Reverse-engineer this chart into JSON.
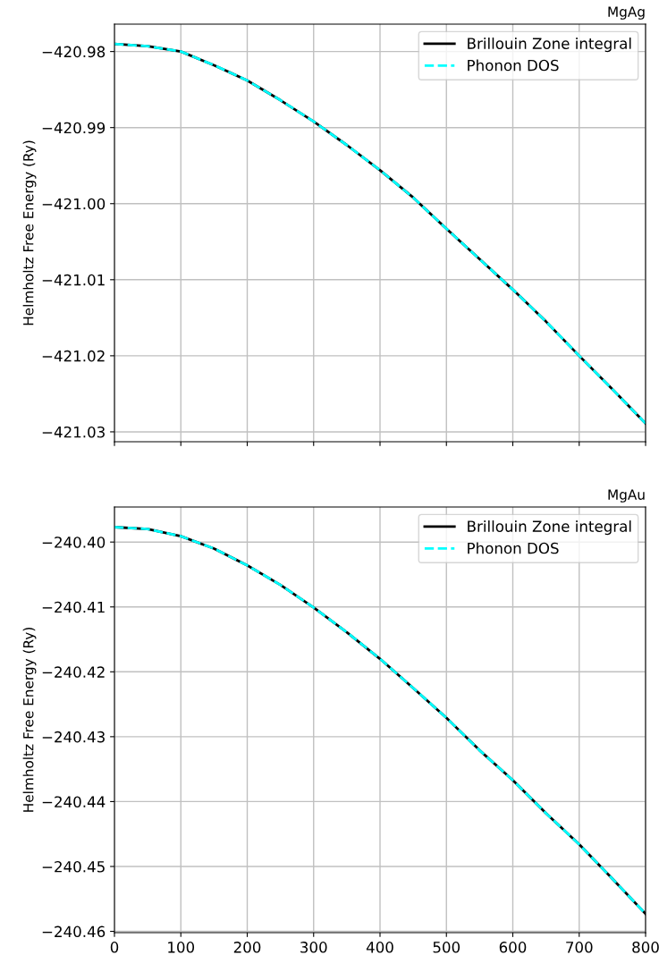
{
  "chart_data": [
    {
      "type": "line",
      "title": "MgAg",
      "ylabel": "Helmholtz Free Energy (Ry)",
      "x": [
        0,
        50,
        100,
        150,
        200,
        250,
        300,
        350,
        400,
        450,
        500,
        550,
        600,
        650,
        700,
        750,
        800
      ],
      "series": [
        {
          "name": "Brillouin Zone integral",
          "color": "#000000",
          "line_style": "solid",
          "values": [
            -420.979,
            -420.9793,
            -420.98,
            -420.9818,
            -420.9838,
            -420.9864,
            -420.9892,
            -420.9923,
            -420.9956,
            -420.9992,
            -421.0033,
            -421.0073,
            -421.0113,
            -421.0155,
            -421.02,
            -421.0244,
            -421.0289
          ]
        },
        {
          "name": "Phonon DOS",
          "color": "#00ffff",
          "line_style": "dashed",
          "values": [
            -420.979,
            -420.9793,
            -420.98,
            -420.9818,
            -420.9838,
            -420.9864,
            -420.9892,
            -420.9923,
            -420.9956,
            -420.9992,
            -421.0033,
            -421.0073,
            -421.0113,
            -421.0155,
            -421.02,
            -421.0244,
            -421.0289
          ]
        }
      ],
      "xlim": [
        0,
        800
      ],
      "xticks": [
        0,
        100,
        200,
        300,
        400,
        500,
        600,
        700,
        800
      ],
      "ylim": [
        -421.0313,
        -420.9764
      ],
      "yticks": [
        {
          "value": -420.98,
          "label": "−420.98"
        },
        {
          "value": -420.99,
          "label": "−420.99"
        },
        {
          "value": -421.0,
          "label": "−421.00"
        },
        {
          "value": -421.01,
          "label": "−421.01"
        },
        {
          "value": -421.02,
          "label": "−421.02"
        },
        {
          "value": -421.03,
          "label": "−421.03"
        }
      ],
      "tick_labels": "y",
      "grid": true,
      "legend": "top right"
    },
    {
      "type": "line",
      "title": "MgAu",
      "ylabel": "Helmholtz Free Energy (Ry)",
      "x": [
        0,
        50,
        100,
        150,
        200,
        250,
        300,
        350,
        400,
        450,
        500,
        550,
        600,
        650,
        700,
        750,
        800
      ],
      "series": [
        {
          "name": "Brillouin Zone integral",
          "color": "#000000",
          "line_style": "solid",
          "values": [
            -240.3977,
            -240.398,
            -240.3991,
            -240.401,
            -240.4036,
            -240.4066,
            -240.4101,
            -240.4139,
            -240.418,
            -240.4225,
            -240.4271,
            -240.4321,
            -240.4367,
            -240.4418,
            -240.4466,
            -240.4519,
            -240.4573
          ]
        },
        {
          "name": "Phonon DOS",
          "color": "#00ffff",
          "line_style": "dashed",
          "values": [
            -240.3977,
            -240.398,
            -240.3991,
            -240.401,
            -240.4036,
            -240.4066,
            -240.4101,
            -240.4139,
            -240.418,
            -240.4225,
            -240.4271,
            -240.4321,
            -240.4367,
            -240.4418,
            -240.4466,
            -240.4519,
            -240.4573
          ]
        }
      ],
      "xlim": [
        0,
        800
      ],
      "xticks": [
        0,
        100,
        200,
        300,
        400,
        500,
        600,
        700,
        800
      ],
      "ylim": [
        -240.4602,
        -240.3946
      ],
      "yticks": [
        {
          "value": -240.4,
          "label": "−240.40"
        },
        {
          "value": -240.41,
          "label": "−240.41"
        },
        {
          "value": -240.42,
          "label": "−240.42"
        },
        {
          "value": -240.43,
          "label": "−240.43"
        },
        {
          "value": -240.44,
          "label": "−240.44"
        },
        {
          "value": -240.45,
          "label": "−240.45"
        },
        {
          "value": -240.46,
          "label": "−240.46"
        }
      ],
      "grid": true,
      "legend": "top right"
    }
  ]
}
